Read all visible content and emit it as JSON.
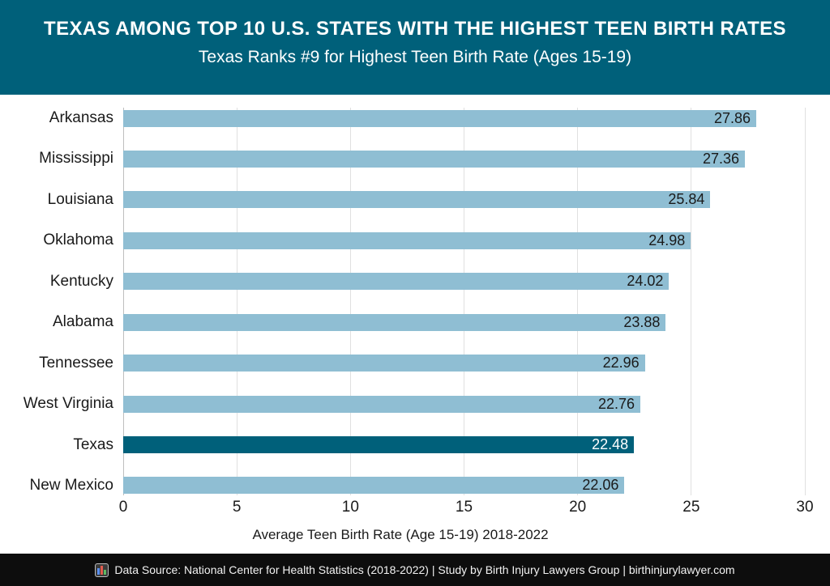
{
  "header": {
    "title": "TEXAS AMONG TOP 10 U.S. STATES WITH THE HIGHEST TEEN BIRTH RATES",
    "subtitle": "Texas Ranks #9 for Highest Teen Birth Rate (Ages 15-19)",
    "background_color": "#00607a",
    "text_color": "#ffffff"
  },
  "chart_data": {
    "type": "bar",
    "orientation": "horizontal",
    "categories": [
      "Arkansas",
      "Mississippi",
      "Louisiana",
      "Oklahoma",
      "Kentucky",
      "Alabama",
      "Tennessee",
      "West Virginia",
      "Texas",
      "New Mexico"
    ],
    "values": [
      27.86,
      27.36,
      25.84,
      24.98,
      24.02,
      23.88,
      22.96,
      22.76,
      22.48,
      22.06
    ],
    "value_labels": [
      "27.86",
      "27.36",
      "25.84",
      "24.98",
      "24.02",
      "23.88",
      "22.96",
      "22.76",
      "22.48",
      "22.06"
    ],
    "highlight_category": "Texas",
    "xlabel": "Average Teen Birth Rate (Age 15-19) 2018-2022",
    "ylabel": "",
    "xlim": [
      0,
      30
    ],
    "xticks": [
      0,
      5,
      10,
      15,
      20,
      25,
      30
    ],
    "grid": "vertical",
    "legend": "none",
    "bar_color": "#8fbed3",
    "highlight_color": "#00607a",
    "value_label_color": "#1a1a1a",
    "highlight_value_label_color": "#ffffff"
  },
  "footer": {
    "icon": "bar-chart-emoji",
    "text": "Data Source: National Center for Health Statistics (2018-2022) | Study by Birth Injury Lawyers Group | birthinjurylawyer.com",
    "background_color": "#0d0d0d",
    "text_color": "#f2f2f2"
  }
}
